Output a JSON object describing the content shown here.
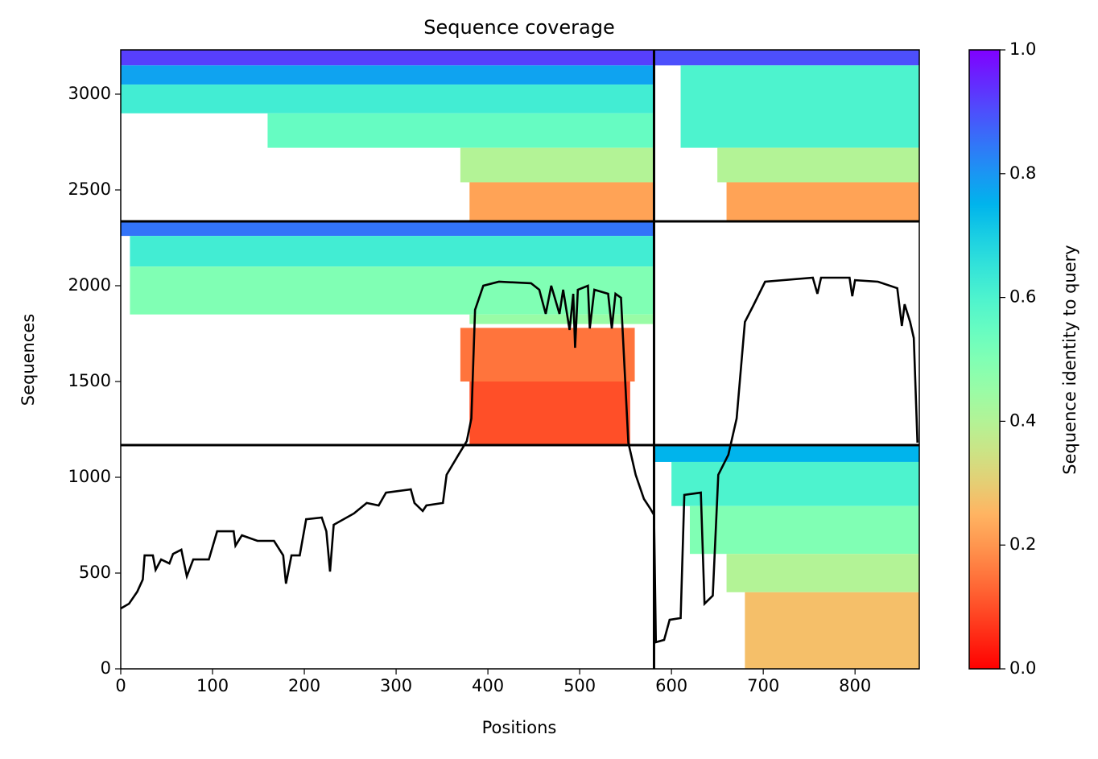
{
  "chart_data": {
    "type": "coverage",
    "title": "Sequence coverage",
    "x_label": "Positions",
    "y_label": "Sequences",
    "colorbar_label": "Sequence identity to query",
    "xlim": [
      0,
      870
    ],
    "ylim": [
      0,
      3231
    ],
    "xticks": [
      0,
      100,
      200,
      300,
      400,
      500,
      600,
      700,
      800
    ],
    "yticks": [
      0,
      500,
      1000,
      1500,
      2000,
      2500,
      3000
    ],
    "clim": [
      0,
      1
    ],
    "cticks": [
      {
        "value": 0,
        "label": "0.0"
      },
      0.2,
      0.4,
      0.6,
      0.8,
      {
        "value": 1,
        "label": "1.0"
      }
    ],
    "colormap": "rainbow_r",
    "line_color": "#000000",
    "dividers": {
      "x": [
        581
      ],
      "y": [
        1168,
        2336
      ]
    },
    "blocks": {
      "x0": [
        0,
        0,
        0,
        160,
        370,
        380,
        581,
        610,
        650,
        660,
        0,
        10,
        10,
        380,
        370,
        380,
        581,
        600,
        620,
        660,
        680
      ],
      "x1": [
        581,
        581,
        581,
        581,
        581,
        581,
        870,
        870,
        870,
        870,
        581,
        581,
        581,
        581,
        560,
        555,
        870,
        870,
        870,
        870,
        870
      ],
      "y0": [
        3150,
        3050,
        2900,
        2720,
        2540,
        2336,
        3150,
        2720,
        2540,
        2336,
        2260,
        2100,
        1850,
        1800,
        1500,
        1168,
        1080,
        850,
        600,
        400,
        0
      ],
      "y1": [
        3231,
        3150,
        3050,
        2900,
        2720,
        2540,
        3231,
        3150,
        2720,
        2540,
        2336,
        2260,
        2100,
        1850,
        1780,
        1500,
        1168,
        1080,
        850,
        600,
        400
      ],
      "identity": [
        0.92,
        0.78,
        0.62,
        0.55,
        0.4,
        0.22,
        0.9,
        0.6,
        0.4,
        0.22,
        0.85,
        0.62,
        0.5,
        0.45,
        0.15,
        0.1,
        0.75,
        0.6,
        0.5,
        0.4,
        0.27
      ]
    },
    "coverage": {
      "x": [
        0,
        9,
        18,
        24,
        26,
        35,
        38,
        44,
        53,
        57,
        66,
        72,
        79,
        96,
        105,
        123,
        125,
        132,
        149,
        167,
        177,
        180,
        186,
        195,
        202,
        219,
        224,
        228,
        232,
        254,
        268,
        281,
        289,
        316,
        320,
        329,
        333,
        351,
        355,
        368,
        377,
        382,
        386,
        395,
        412,
        447,
        456,
        463,
        469,
        478,
        482,
        489,
        493,
        495,
        498,
        509,
        511,
        516,
        531,
        535,
        539,
        545,
        553,
        561,
        570,
        577,
        581,
        583,
        592,
        598,
        610,
        614,
        632,
        636,
        645,
        651,
        662,
        671,
        680,
        689,
        702,
        754,
        759,
        763,
        794,
        797,
        800,
        825,
        846,
        851,
        854,
        860,
        864,
        868
      ],
      "values": [
        315,
        340,
        403,
        466,
        592,
        592,
        517,
        571,
        550,
        600,
        622,
        483,
        571,
        571,
        718,
        718,
        643,
        697,
        668,
        668,
        592,
        445,
        592,
        592,
        781,
        790,
        718,
        508,
        752,
        811,
        866,
        853,
        920,
        937,
        866,
        824,
        853,
        866,
        1013,
        1118,
        1189,
        1307,
        1874,
        2000,
        2021,
        2013,
        1979,
        1853,
        2000,
        1853,
        1979,
        1769,
        1958,
        1676,
        1979,
        2000,
        1777,
        1979,
        1958,
        1777,
        1958,
        1937,
        1181,
        1013,
        887,
        836,
        803,
        139,
        151,
        256,
        265,
        908,
        920,
        340,
        382,
        1013,
        1118,
        1307,
        1811,
        1895,
        2021,
        2042,
        1958,
        2042,
        2042,
        1945,
        2029,
        2021,
        1987,
        1790,
        1903,
        1811,
        1727,
        1181
      ]
    }
  }
}
